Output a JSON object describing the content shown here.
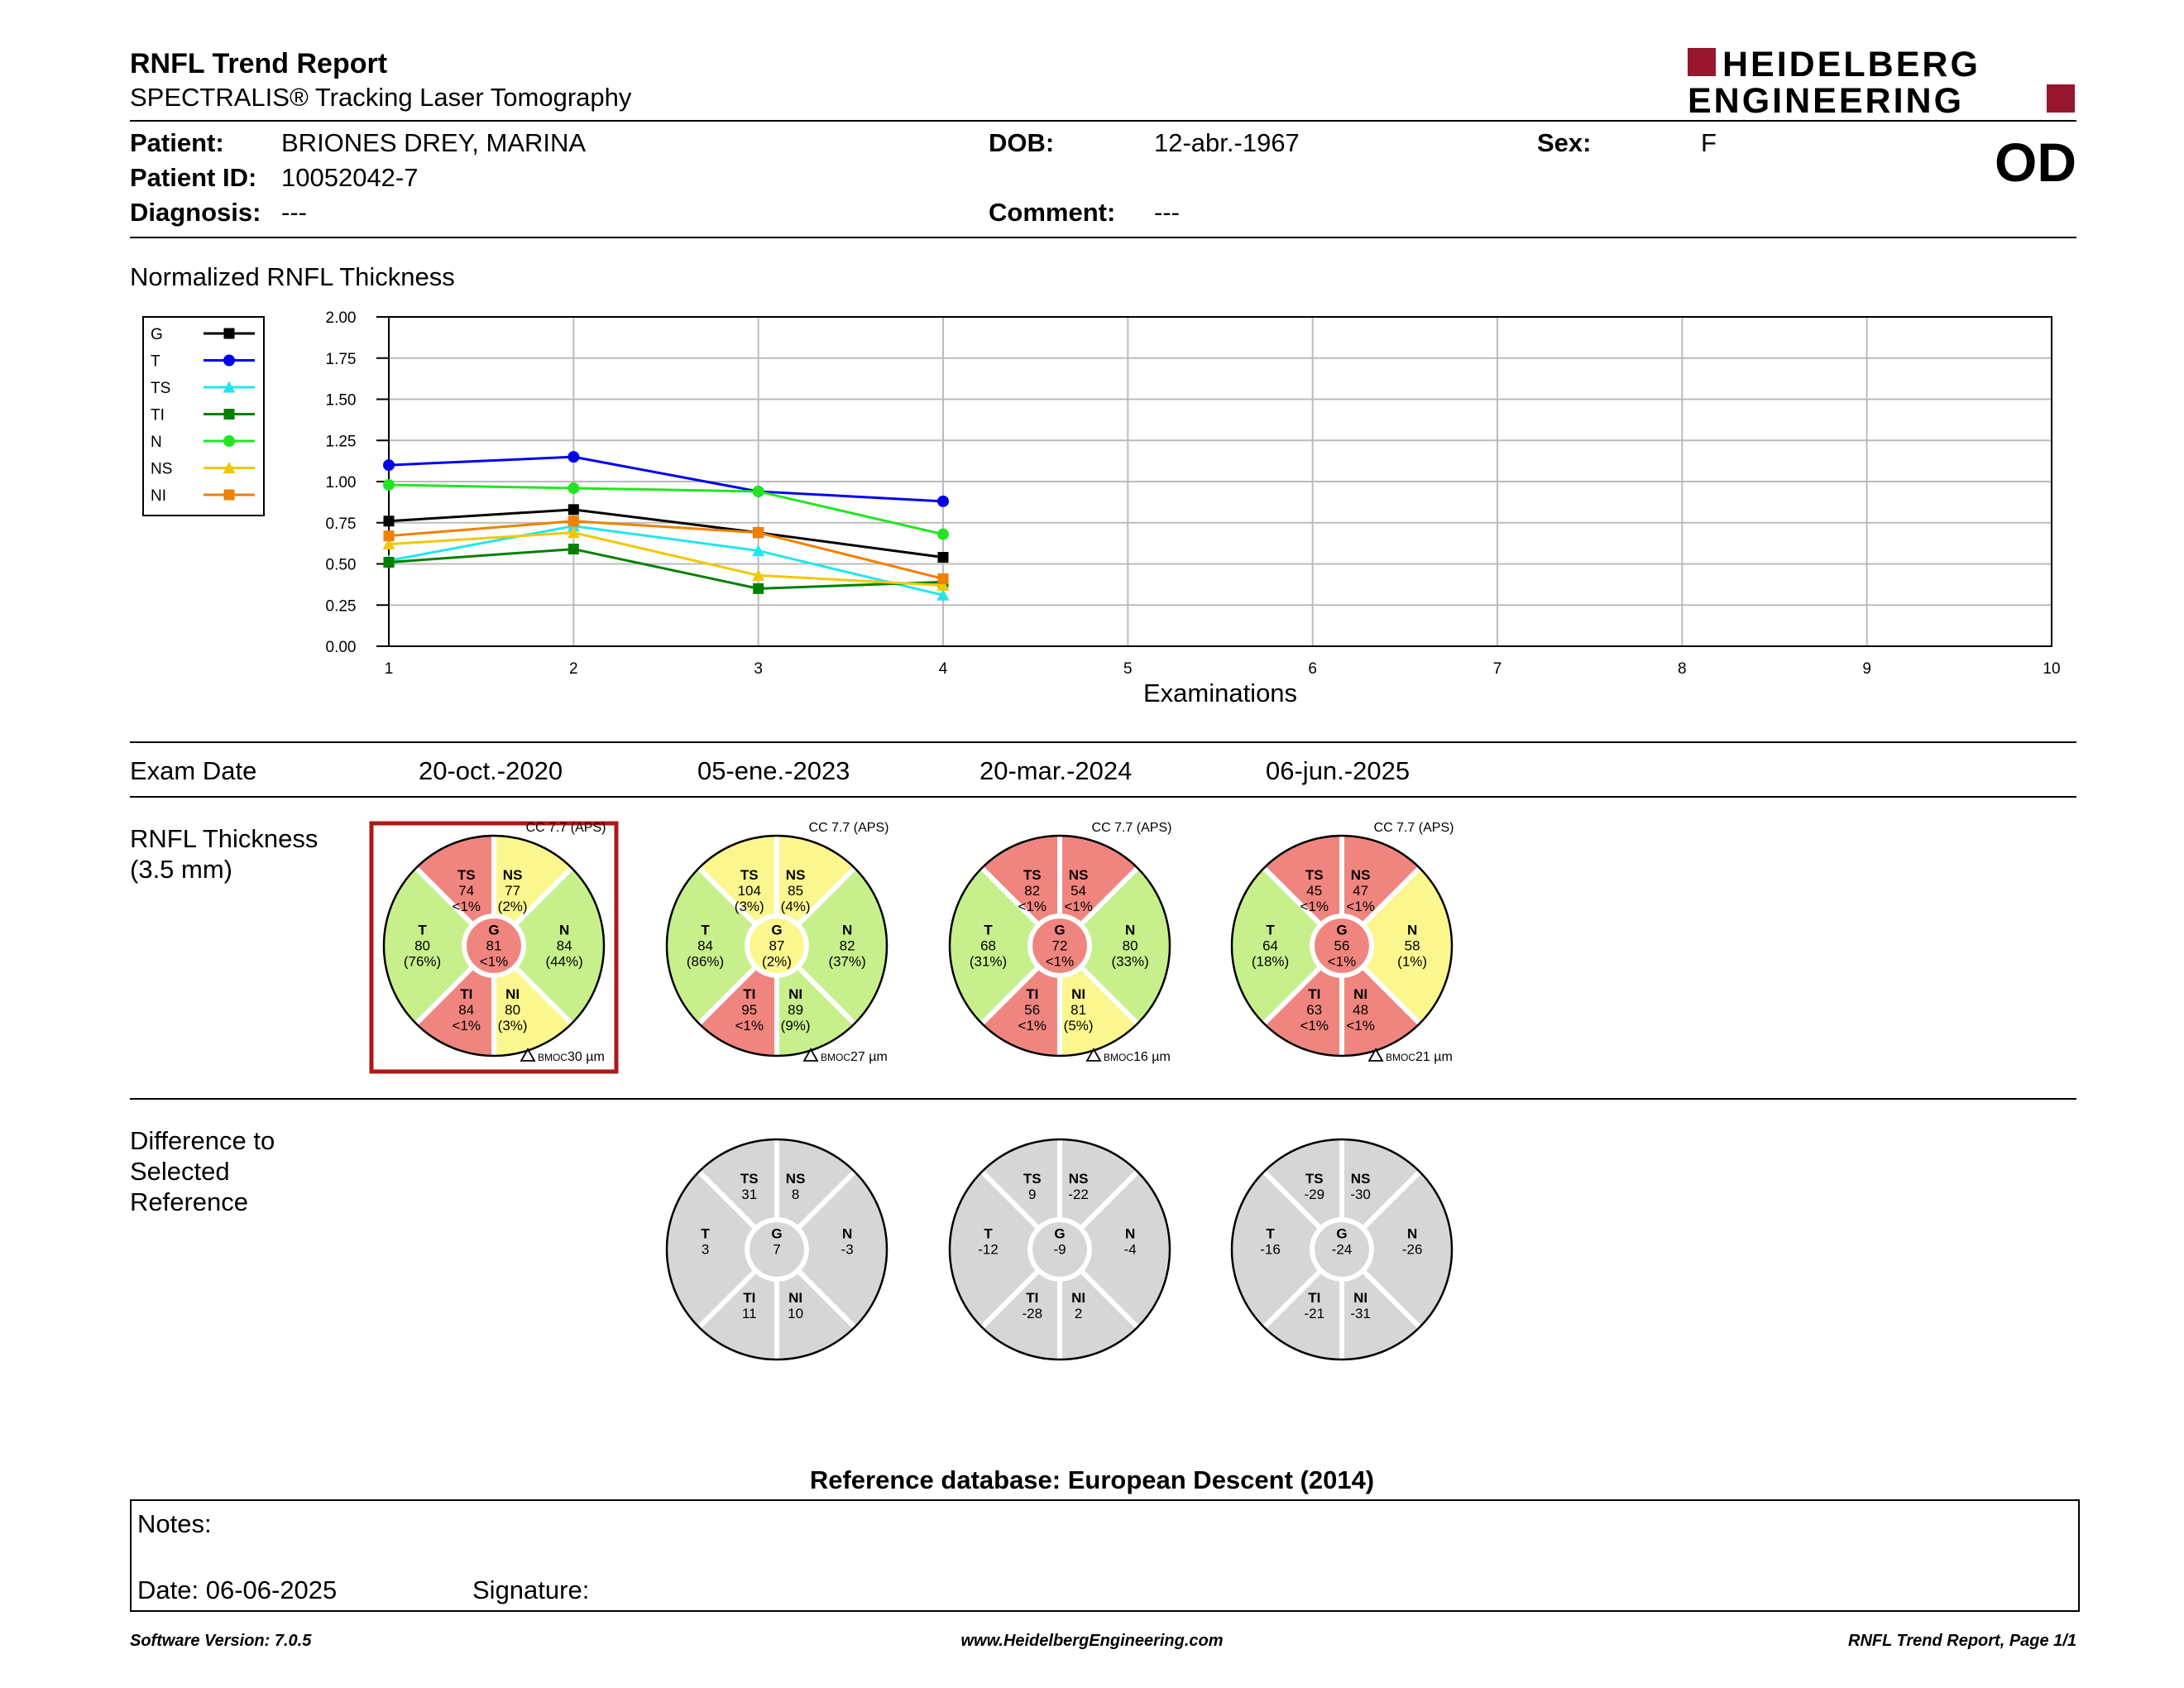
{
  "header": {
    "title": "RNFL Trend Report",
    "subtitle": "SPECTRALIS® Tracking Laser Tomography",
    "logo_line1": "HEIDELBERG",
    "logo_line2": "ENGINEERING",
    "eye": "OD"
  },
  "patient": {
    "patient_label": "Patient:",
    "patient_name": "BRIONES DREY, MARINA",
    "dob_label": "DOB:",
    "dob": "12-abr.-1967",
    "sex_label": "Sex:",
    "sex": "F",
    "id_label": "Patient ID:",
    "patient_id": "10052042-7",
    "diagnosis_label": "Diagnosis:",
    "diagnosis": "---",
    "comment_label": "Comment:",
    "comment": "---"
  },
  "chart_data": {
    "type": "line",
    "title": "Normalized RNFL Thickness",
    "xlabel": "Examinations",
    "ylabel": "",
    "x_ticks": [
      "1",
      "2",
      "3",
      "4",
      "5",
      "6",
      "7",
      "8",
      "9",
      "10"
    ],
    "y_ticks": [
      "0.00",
      "0.25",
      "0.50",
      "0.75",
      "1.00",
      "1.25",
      "1.50",
      "1.75",
      "2.00"
    ],
    "xlim": [
      1,
      10
    ],
    "ylim": [
      0,
      2
    ],
    "grid": true,
    "legend_position": "left",
    "series": [
      {
        "name": "G",
        "color": "#000000",
        "marker": "square",
        "x": [
          1,
          2,
          3,
          4
        ],
        "values": [
          0.76,
          0.83,
          0.69,
          0.54
        ]
      },
      {
        "name": "T",
        "color": "#0000ee",
        "marker": "circle",
        "x": [
          1,
          2,
          3,
          4
        ],
        "values": [
          1.1,
          1.15,
          0.94,
          0.88
        ]
      },
      {
        "name": "TS",
        "color": "#22e5f0",
        "marker": "triangle",
        "x": [
          1,
          2,
          3,
          4
        ],
        "values": [
          0.52,
          0.73,
          0.58,
          0.31
        ]
      },
      {
        "name": "TI",
        "color": "#008000",
        "marker": "square",
        "x": [
          1,
          2,
          3,
          4
        ],
        "values": [
          0.51,
          0.59,
          0.35,
          0.39
        ]
      },
      {
        "name": "N",
        "color": "#22e522",
        "marker": "circle",
        "x": [
          1,
          2,
          3,
          4
        ],
        "values": [
          0.98,
          0.96,
          0.94,
          0.68
        ]
      },
      {
        "name": "NS",
        "color": "#f0c800",
        "marker": "triangle",
        "x": [
          1,
          2,
          3,
          4
        ],
        "values": [
          0.62,
          0.69,
          0.43,
          0.37
        ]
      },
      {
        "name": "NI",
        "color": "#f08000",
        "marker": "square",
        "x": [
          1,
          2,
          3,
          4
        ],
        "values": [
          0.67,
          0.76,
          0.69,
          0.41
        ]
      }
    ]
  },
  "exam_dates_label": "Exam Date",
  "exam_dates": [
    "20-oct.-2020",
    "05-ene.-2023",
    "20-mar.-2024",
    "06-jun.-2025"
  ],
  "thickness_label_1": "RNFL Thickness",
  "thickness_label_2": "(3.5 mm)",
  "difference_label_1": "Difference to",
  "difference_label_2": "Selected",
  "difference_label_3": "Reference",
  "colors": {
    "red": "#f0857f",
    "yellow": "#fbf78e",
    "green": "#c7f08c",
    "gray": "#d6d6d6",
    "selected_frame": "#b01818"
  },
  "thickness_circles": [
    {
      "cc": "CC 7.7 (APS)",
      "bmoc_label": "BMOC",
      "bmoc": "30 µm",
      "selected": true,
      "sectors": {
        "TS": {
          "name": "TS",
          "value": "74",
          "pct": "<1%",
          "color": "red"
        },
        "NS": {
          "name": "NS",
          "value": "77",
          "pct": "(2%)",
          "color": "yellow"
        },
        "N": {
          "name": "N",
          "value": "84",
          "pct": "(44%)",
          "color": "green"
        },
        "NI": {
          "name": "NI",
          "value": "80",
          "pct": "(3%)",
          "color": "yellow"
        },
        "TI": {
          "name": "TI",
          "value": "84",
          "pct": "<1%",
          "color": "red"
        },
        "T": {
          "name": "T",
          "value": "80",
          "pct": "(76%)",
          "color": "green"
        },
        "G": {
          "name": "G",
          "value": "81",
          "pct": "<1%",
          "color": "red"
        }
      }
    },
    {
      "cc": "CC 7.7 (APS)",
      "bmoc_label": "BMOC",
      "bmoc": "27 µm",
      "selected": false,
      "sectors": {
        "TS": {
          "name": "TS",
          "value": "104",
          "pct": "(3%)",
          "color": "yellow"
        },
        "NS": {
          "name": "NS",
          "value": "85",
          "pct": "(4%)",
          "color": "yellow"
        },
        "N": {
          "name": "N",
          "value": "82",
          "pct": "(37%)",
          "color": "green"
        },
        "NI": {
          "name": "NI",
          "value": "89",
          "pct": "(9%)",
          "color": "green"
        },
        "TI": {
          "name": "TI",
          "value": "95",
          "pct": "<1%",
          "color": "red"
        },
        "T": {
          "name": "T",
          "value": "84",
          "pct": "(86%)",
          "color": "green"
        },
        "G": {
          "name": "G",
          "value": "87",
          "pct": "(2%)",
          "color": "yellow"
        }
      }
    },
    {
      "cc": "CC 7.7 (APS)",
      "bmoc_label": "BMOC",
      "bmoc": "16 µm",
      "selected": false,
      "sectors": {
        "TS": {
          "name": "TS",
          "value": "82",
          "pct": "<1%",
          "color": "red"
        },
        "NS": {
          "name": "NS",
          "value": "54",
          "pct": "<1%",
          "color": "red"
        },
        "N": {
          "name": "N",
          "value": "80",
          "pct": "(33%)",
          "color": "green"
        },
        "NI": {
          "name": "NI",
          "value": "81",
          "pct": "(5%)",
          "color": "yellow"
        },
        "TI": {
          "name": "TI",
          "value": "56",
          "pct": "<1%",
          "color": "red"
        },
        "T": {
          "name": "T",
          "value": "68",
          "pct": "(31%)",
          "color": "green"
        },
        "G": {
          "name": "G",
          "value": "72",
          "pct": "<1%",
          "color": "red"
        }
      }
    },
    {
      "cc": "CC 7.7 (APS)",
      "bmoc_label": "BMOC",
      "bmoc": "21 µm",
      "selected": false,
      "sectors": {
        "TS": {
          "name": "TS",
          "value": "45",
          "pct": "<1%",
          "color": "red"
        },
        "NS": {
          "name": "NS",
          "value": "47",
          "pct": "<1%",
          "color": "red"
        },
        "N": {
          "name": "N",
          "value": "58",
          "pct": "(1%)",
          "color": "yellow"
        },
        "NI": {
          "name": "NI",
          "value": "48",
          "pct": "<1%",
          "color": "red"
        },
        "TI": {
          "name": "TI",
          "value": "63",
          "pct": "<1%",
          "color": "red"
        },
        "T": {
          "name": "T",
          "value": "64",
          "pct": "(18%)",
          "color": "green"
        },
        "G": {
          "name": "G",
          "value": "56",
          "pct": "<1%",
          "color": "red"
        }
      }
    }
  ],
  "difference_circles": [
    {
      "sectors": {
        "TS": {
          "name": "TS",
          "value": "31"
        },
        "NS": {
          "name": "NS",
          "value": "8"
        },
        "N": {
          "name": "N",
          "value": "-3"
        },
        "NI": {
          "name": "NI",
          "value": "10"
        },
        "TI": {
          "name": "TI",
          "value": "11"
        },
        "T": {
          "name": "T",
          "value": "3"
        },
        "G": {
          "name": "G",
          "value": "7"
        }
      }
    },
    {
      "sectors": {
        "TS": {
          "name": "TS",
          "value": "9"
        },
        "NS": {
          "name": "NS",
          "value": "-22"
        },
        "N": {
          "name": "N",
          "value": "-4"
        },
        "NI": {
          "name": "NI",
          "value": "2"
        },
        "TI": {
          "name": "TI",
          "value": "-28"
        },
        "T": {
          "name": "T",
          "value": "-12"
        },
        "G": {
          "name": "G",
          "value": "-9"
        }
      }
    },
    {
      "sectors": {
        "TS": {
          "name": "TS",
          "value": "-29"
        },
        "NS": {
          "name": "NS",
          "value": "-30"
        },
        "N": {
          "name": "N",
          "value": "-26"
        },
        "NI": {
          "name": "NI",
          "value": "-31"
        },
        "TI": {
          "name": "TI",
          "value": "-21"
        },
        "T": {
          "name": "T",
          "value": "-16"
        },
        "G": {
          "name": "G",
          "value": "-24"
        }
      }
    }
  ],
  "reference_db": "Reference database: European Descent (2014)",
  "notes": {
    "notes_label": "Notes:",
    "date_label": "Date: 06-06-2025",
    "signature_label": "Signature:"
  },
  "footer": {
    "left": "Software Version: 7.0.5",
    "center": "www.HeidelbergEngineering.com",
    "right": "RNFL Trend Report, Page 1/1"
  }
}
